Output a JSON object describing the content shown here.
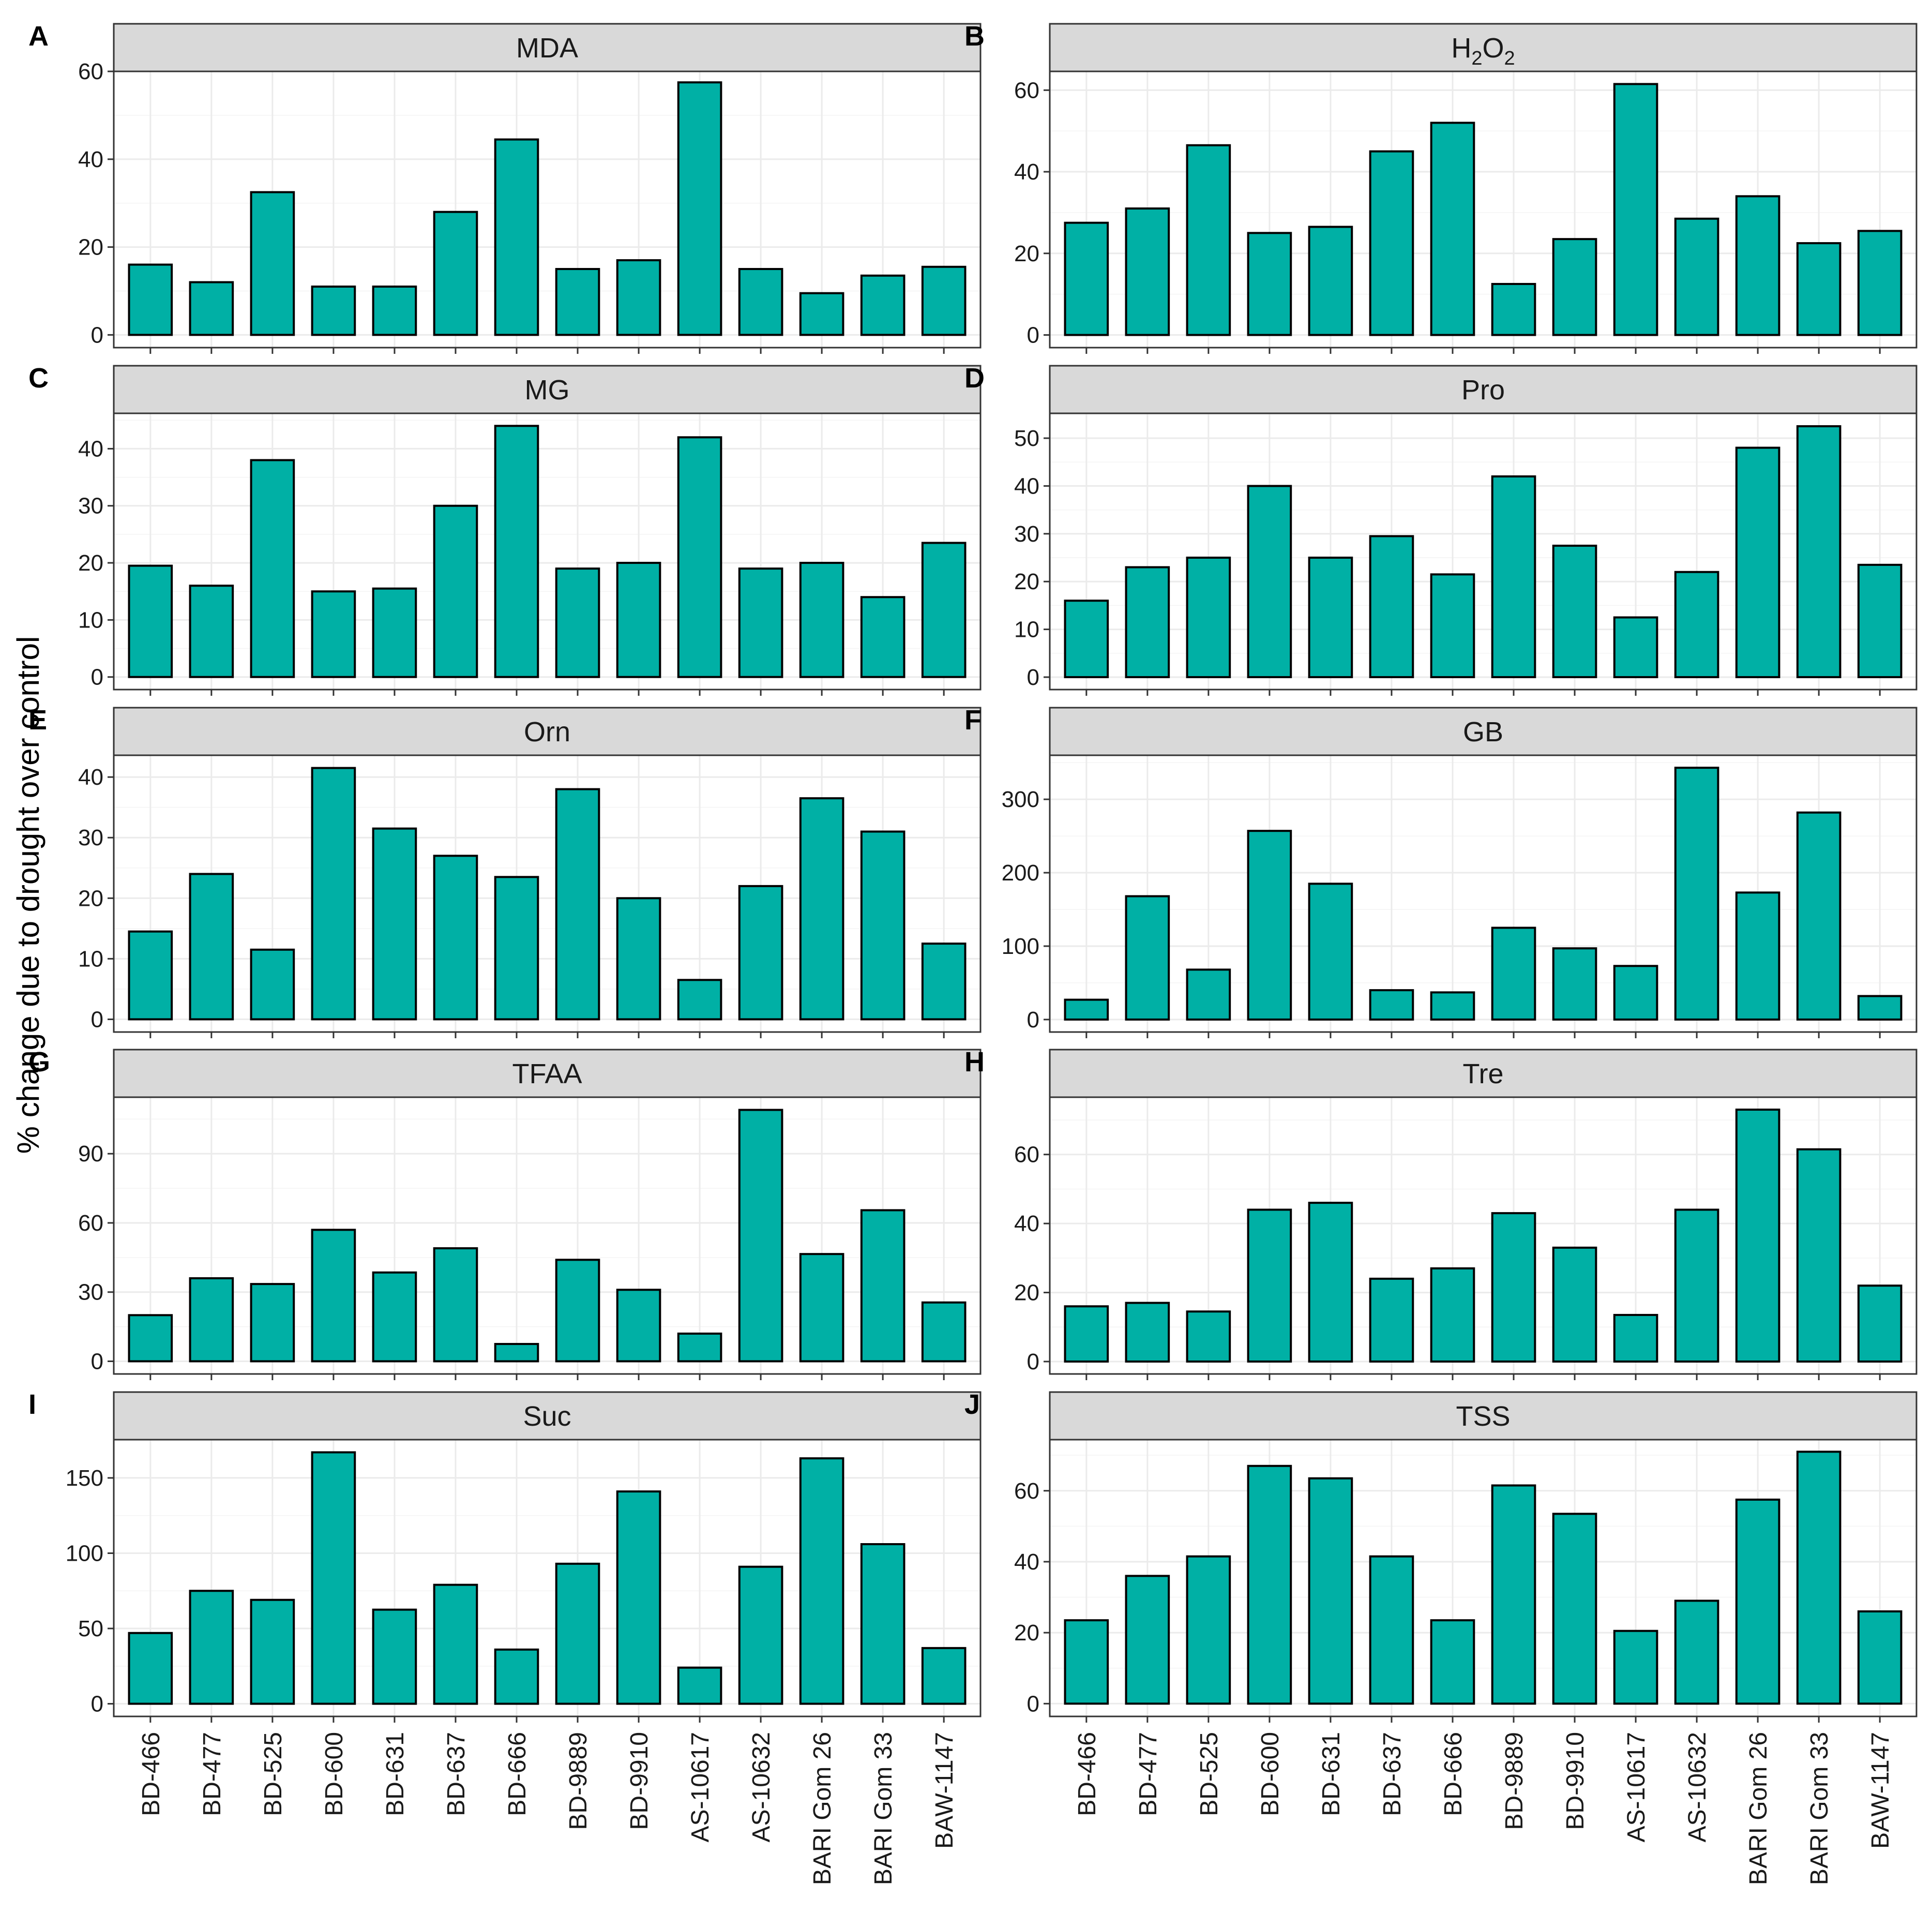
{
  "figure": {
    "ylabel": "% change due to drought over control",
    "bar_color": "#00b0a5"
  },
  "chart_data": [
    {
      "type": "bar",
      "panel": "A",
      "title": "MDA",
      "categories": [
        "BD-466",
        "BD-477",
        "BD-525",
        "BD-600",
        "BD-631",
        "BD-637",
        "BD-666",
        "BD-9889",
        "BD-9910",
        "AS-10617",
        "AS-10632",
        "BARI Gom 26",
        "BARI Gom 33",
        "BAW-1147"
      ],
      "values": [
        16,
        12,
        32.5,
        11,
        11,
        28,
        44.5,
        15,
        17,
        57.5,
        15,
        9.5,
        13.5,
        15.5
      ],
      "ylim": [
        -2.9,
        60
      ],
      "yticks": [
        0,
        20,
        40,
        60
      ],
      "ytick_labels": [
        "0",
        "20",
        "40",
        "60"
      ]
    },
    {
      "type": "bar",
      "panel": "B",
      "title": "H2O2",
      "title_main": "H",
      "title_sub": "2",
      "title_mid": "O",
      "title_sub2": "2",
      "categories": [
        "BD-466",
        "BD-477",
        "BD-525",
        "BD-600",
        "BD-631",
        "BD-637",
        "BD-666",
        "BD-9889",
        "BD-9910",
        "AS-10617",
        "AS-10632",
        "BARI Gom 26",
        "BARI Gom 33",
        "BAW-1147"
      ],
      "values": [
        27.5,
        31,
        46.5,
        25,
        26.5,
        45,
        52,
        12.5,
        23.5,
        61.5,
        28.5,
        34,
        22.5,
        25.5
      ],
      "ylim": [
        -3.1,
        64.6
      ],
      "yticks": [
        0,
        20,
        40,
        60
      ],
      "ytick_labels": [
        "0",
        "20",
        "40",
        "60"
      ]
    },
    {
      "type": "bar",
      "panel": "C",
      "title": "MG",
      "categories": [
        "BD-466",
        "BD-477",
        "BD-525",
        "BD-600",
        "BD-631",
        "BD-637",
        "BD-666",
        "BD-9889",
        "BD-9910",
        "AS-10617",
        "AS-10632",
        "BARI Gom 26",
        "BARI Gom 33",
        "BAW-1147"
      ],
      "values": [
        19.5,
        16,
        38,
        15,
        15.5,
        30,
        44,
        19,
        20,
        42,
        19,
        20,
        14,
        23.5
      ],
      "ylim": [
        -2.2,
        46.2
      ],
      "yticks": [
        0,
        10,
        20,
        30,
        40
      ],
      "ytick_labels": [
        "0",
        "10",
        "20",
        "30",
        "40"
      ]
    },
    {
      "type": "bar",
      "panel": "D",
      "title": "Pro",
      "categories": [
        "BD-466",
        "BD-477",
        "BD-525",
        "BD-600",
        "BD-631",
        "BD-637",
        "BD-666",
        "BD-9889",
        "BD-9910",
        "AS-10617",
        "AS-10632",
        "BARI Gom 26",
        "BARI Gom 33",
        "BAW-1147"
      ],
      "values": [
        16,
        23,
        25,
        40,
        25,
        29.5,
        21.5,
        42,
        27.5,
        12.5,
        22,
        48,
        52.5,
        23.5
      ],
      "ylim": [
        -2.6,
        55.2
      ],
      "yticks": [
        0,
        10,
        20,
        30,
        40,
        50
      ],
      "ytick_labels": [
        "0",
        "10",
        "20",
        "30",
        "40",
        "50"
      ]
    },
    {
      "type": "bar",
      "panel": "E",
      "title": "Orn",
      "categories": [
        "BD-466",
        "BD-477",
        "BD-525",
        "BD-600",
        "BD-631",
        "BD-637",
        "BD-666",
        "BD-9889",
        "BD-9910",
        "AS-10617",
        "AS-10632",
        "BARI Gom 26",
        "BARI Gom 33",
        "BAW-1147"
      ],
      "values": [
        14.5,
        24,
        11.5,
        41.5,
        31.5,
        27,
        23.5,
        38,
        20,
        6.5,
        22,
        36.5,
        31,
        12.5
      ],
      "ylim": [
        -2.1,
        43.6
      ],
      "yticks": [
        0,
        10,
        20,
        30,
        40
      ],
      "ytick_labels": [
        "0",
        "10",
        "20",
        "30",
        "40"
      ]
    },
    {
      "type": "bar",
      "panel": "F",
      "title": "GB",
      "categories": [
        "BD-466",
        "BD-477",
        "BD-525",
        "BD-600",
        "BD-631",
        "BD-637",
        "BD-666",
        "BD-9889",
        "BD-9910",
        "AS-10617",
        "AS-10632",
        "BARI Gom 26",
        "BARI Gom 33",
        "BAW-1147"
      ],
      "values": [
        27,
        168,
        68,
        257,
        185,
        40,
        37,
        125,
        97,
        73,
        343,
        173,
        282,
        32
      ],
      "ylim": [
        -17,
        360
      ],
      "yticks": [
        0,
        100,
        200,
        300
      ],
      "ytick_labels": [
        "0",
        "100",
        "200",
        "300"
      ]
    },
    {
      "type": "bar",
      "panel": "G",
      "title": "TFAA",
      "categories": [
        "BD-466",
        "BD-477",
        "BD-525",
        "BD-600",
        "BD-631",
        "BD-637",
        "BD-666",
        "BD-9889",
        "BD-9910",
        "AS-10617",
        "AS-10632",
        "BARI Gom 26",
        "BARI Gom 33",
        "BAW-1147"
      ],
      "values": [
        20,
        36,
        33.5,
        57,
        38.5,
        49,
        7.5,
        44,
        31,
        12,
        109,
        46.5,
        65.5,
        25.5
      ],
      "ylim": [
        -5.5,
        114.5
      ],
      "yticks": [
        0,
        30,
        60,
        90
      ],
      "ytick_labels": [
        "0",
        "30",
        "60",
        "90"
      ]
    },
    {
      "type": "bar",
      "panel": "H",
      "title": "Tre",
      "categories": [
        "BD-466",
        "BD-477",
        "BD-525",
        "BD-600",
        "BD-631",
        "BD-637",
        "BD-666",
        "BD-9889",
        "BD-9910",
        "AS-10617",
        "AS-10632",
        "BARI Gom 26",
        "BARI Gom 33",
        "BAW-1147"
      ],
      "values": [
        16,
        17,
        14.5,
        44,
        46,
        24,
        27,
        43,
        33,
        13.5,
        44,
        73,
        61.5,
        22
      ],
      "ylim": [
        -3.6,
        76.6
      ],
      "yticks": [
        0,
        20,
        40,
        60
      ],
      "ytick_labels": [
        "0",
        "20",
        "40",
        "60"
      ]
    },
    {
      "type": "bar",
      "panel": "I",
      "title": "Suc",
      "categories": [
        "BD-466",
        "BD-477",
        "BD-525",
        "BD-600",
        "BD-631",
        "BD-637",
        "BD-666",
        "BD-9889",
        "BD-9910",
        "AS-10617",
        "AS-10632",
        "BARI Gom 26",
        "BARI Gom 33",
        "BAW-1147"
      ],
      "values": [
        47,
        75,
        69,
        167,
        62.5,
        79,
        36,
        93,
        141,
        24,
        91,
        163,
        106,
        37
      ],
      "ylim": [
        -8.4,
        175.4
      ],
      "yticks": [
        0,
        50,
        100,
        150
      ],
      "ytick_labels": [
        "0",
        "50",
        "100",
        "150"
      ]
    },
    {
      "type": "bar",
      "panel": "J",
      "title": "TSS",
      "categories": [
        "BD-466",
        "BD-477",
        "BD-525",
        "BD-600",
        "BD-631",
        "BD-637",
        "BD-666",
        "BD-9889",
        "BD-9910",
        "AS-10617",
        "AS-10632",
        "BARI Gom 26",
        "BARI Gom 33",
        "BAW-1147"
      ],
      "values": [
        23.5,
        36,
        41.5,
        67,
        63.5,
        41.5,
        23.5,
        61.5,
        53.5,
        20.5,
        29,
        57.5,
        71,
        26
      ],
      "ylim": [
        -3.6,
        74.4
      ],
      "yticks": [
        0,
        20,
        40,
        60
      ],
      "ytick_labels": [
        "0",
        "20",
        "40",
        "60"
      ]
    }
  ]
}
